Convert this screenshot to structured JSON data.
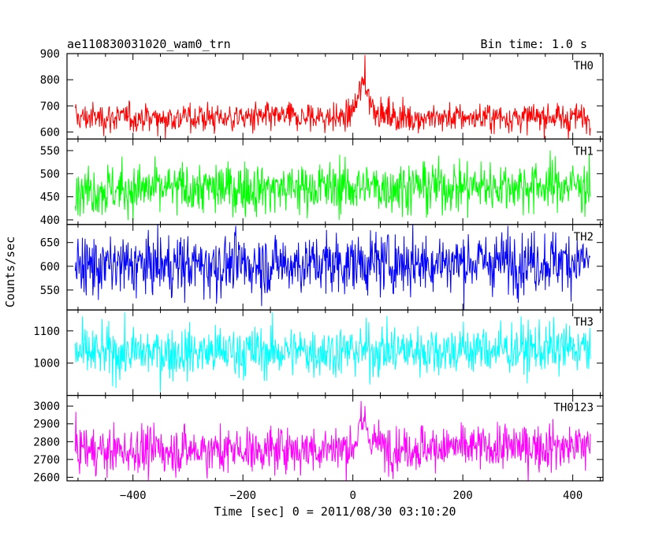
{
  "chart_data": {
    "type": "line",
    "title": "ae110830031020_wam0_trn",
    "bin_time_label": "Bin time: 1.0 s",
    "xlabel": "Time [sec] 0 = 2011/08/30 03:10:20",
    "ylabel": "Counts/sec",
    "xlim": [
      -520,
      455
    ],
    "x_ticks": [
      -400,
      -200,
      0,
      200,
      400
    ],
    "x_tick_labels": [
      "−400",
      "−200",
      "0",
      "200",
      "400"
    ],
    "series": [
      {
        "name": "TH0",
        "color": "#ff0000",
        "ylim": [
          573,
          900
        ],
        "y_ticks": [
          600,
          700,
          800,
          900
        ],
        "baseline": 655,
        "noise": 28,
        "trend": 0,
        "burst": {
          "peak_time": 22,
          "peak_value": 895,
          "rise": 12,
          "decay": 14
        }
      },
      {
        "name": "TH1",
        "color": "#00ff00",
        "ylim": [
          390,
          575
        ],
        "y_ticks": [
          400,
          450,
          500,
          550
        ],
        "baseline": 465,
        "noise": 28,
        "trend": 10,
        "burst": null
      },
      {
        "name": "TH2",
        "color": "#0000ff",
        "ylim": [
          508,
          688
        ],
        "y_ticks": [
          550,
          600,
          650
        ],
        "baseline": 600,
        "noise": 32,
        "trend": 12,
        "burst": null
      },
      {
        "name": "TH3",
        "color": "#00ffff",
        "ylim": [
          900,
          1165
        ],
        "y_ticks": [
          1000,
          1100
        ],
        "baseline": 1030,
        "noise": 40,
        "trend": 15,
        "burst": null
      },
      {
        "name": "TH0123",
        "color": "#ff00ff",
        "ylim": [
          2580,
          3060
        ],
        "y_ticks": [
          2600,
          2700,
          2800,
          2900,
          3000
        ],
        "baseline": 2745,
        "noise": 65,
        "trend": 30,
        "burst": {
          "peak_time": 22,
          "peak_value": 3000,
          "rise": 12,
          "decay": 14
        }
      }
    ]
  }
}
